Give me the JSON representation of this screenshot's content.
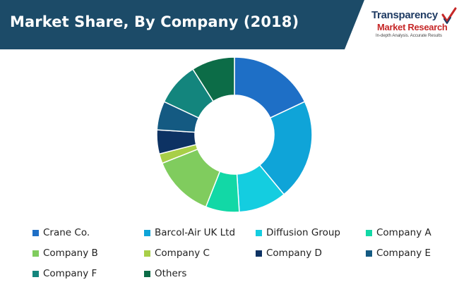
{
  "header": {
    "title": "Market Share, By Company (2018)",
    "band_color": "#1c4b68",
    "logo": {
      "line1": "Transparency",
      "line2": "Market Research",
      "tagline": "In-depth Analysis. Accurate Results",
      "icon": "checkmark-logo-icon"
    }
  },
  "chart_data": {
    "type": "pie",
    "donut": true,
    "title": "Market Share, By Company (2018)",
    "unit": "%",
    "legend_position": "bottom",
    "categories": [
      "Crane Co.",
      "Barcol-Air UK Ltd",
      "Diffusion Group",
      "Company A",
      "Company B",
      "Company C",
      "Company D",
      "Company E",
      "Company F",
      "Others"
    ],
    "values": [
      18,
      21,
      10,
      7,
      13,
      2,
      5,
      6,
      9,
      9
    ],
    "colors": [
      "#1e6fc6",
      "#0fa4d8",
      "#14cde0",
      "#12d8a6",
      "#80cc5e",
      "#a8cf48",
      "#0d3263",
      "#145a82",
      "#13857d",
      "#0c6c47"
    ]
  }
}
